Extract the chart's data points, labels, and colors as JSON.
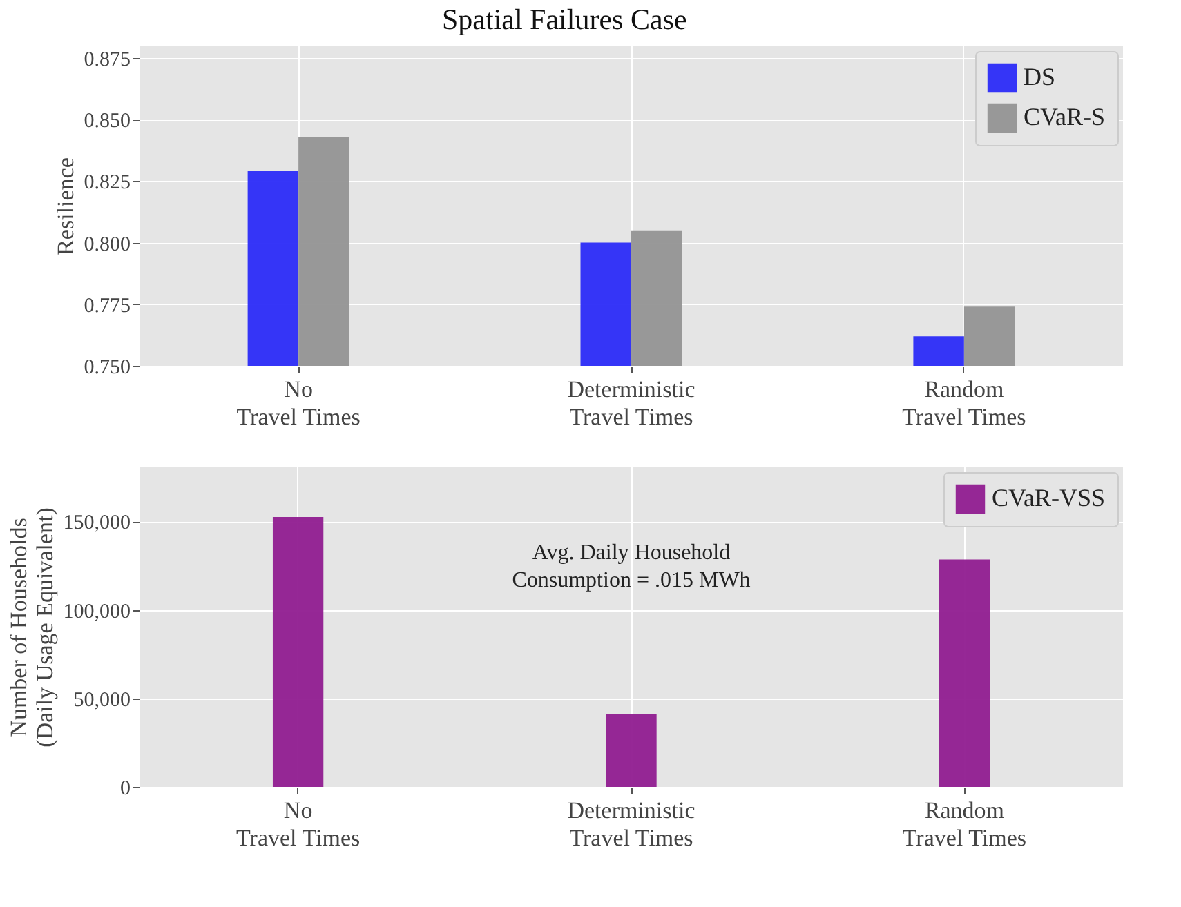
{
  "chart_data": [
    {
      "type": "bar",
      "title": "Spatial Failures Case",
      "ylabel": "Resilience",
      "categories": [
        "No\nTravel Times",
        "Deterministic\nTravel Times",
        "Random\nTravel Times"
      ],
      "series": [
        {
          "name": "DS",
          "color": "#2b2bf8",
          "values": [
            0.829,
            0.8,
            0.762
          ]
        },
        {
          "name": "CVaR-S",
          "color": "#939393",
          "values": [
            0.843,
            0.805,
            0.774
          ]
        }
      ],
      "ylim": [
        0.75,
        0.88
      ],
      "yticks": [
        {
          "value": 0.75,
          "label": "0.750"
        },
        {
          "value": 0.775,
          "label": "0.775"
        },
        {
          "value": 0.8,
          "label": "0.800"
        },
        {
          "value": 0.825,
          "label": "0.825"
        },
        {
          "value": 0.85,
          "label": "0.850"
        },
        {
          "value": 0.875,
          "label": "0.875"
        }
      ],
      "grid": true,
      "legend": "top right"
    },
    {
      "type": "bar",
      "ylabel": "Number of Households\n(Daily Usage Equivalent)",
      "categories": [
        "No\nTravel Times",
        "Deterministic\nTravel Times",
        "Random\nTravel Times"
      ],
      "series": [
        {
          "name": "CVaR-VSS",
          "color": "#901c90",
          "values": [
            152500,
            41000,
            128500
          ]
        }
      ],
      "ylim": [
        0,
        181000
      ],
      "yticks": [
        {
          "value": 0,
          "label": "0"
        },
        {
          "value": 50000,
          "label": "50,000"
        },
        {
          "value": 100000,
          "label": "100,000"
        },
        {
          "value": 150000,
          "label": "150,000"
        }
      ],
      "grid": true,
      "legend": "top right",
      "annotations": [
        "Avg. Daily Household\nConsumption = .015 MWh"
      ]
    }
  ]
}
